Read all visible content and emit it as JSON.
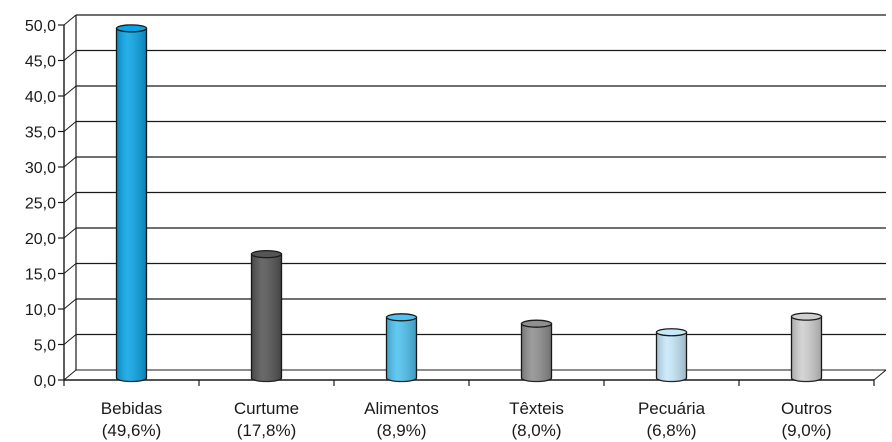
{
  "chart_data": {
    "type": "bar",
    "categories": [
      {
        "name": "Bebidas",
        "share": "(49,6%)"
      },
      {
        "name": "Curtume",
        "share": "(17,8%)"
      },
      {
        "name": "Alimentos",
        "share": "(8,9%)"
      },
      {
        "name": "Têxteis",
        "share": "(8,0%)"
      },
      {
        "name": "Pecuária",
        "share": "(6,8%)"
      },
      {
        "name": "Outros",
        "share": "(9,0%)"
      }
    ],
    "values": [
      49.6,
      17.8,
      8.9,
      8.0,
      6.8,
      9.0
    ],
    "colors": [
      "#0aa4e6",
      "#555555",
      "#4ec2f0",
      "#8f8f8f",
      "#c6e9fa",
      "#cfcfcf"
    ],
    "ylim": [
      0,
      50
    ],
    "yticks": [
      "0,0",
      "5,0",
      "10,0",
      "15,0",
      "20,0",
      "25,0",
      "30,0",
      "35,0",
      "40,0",
      "45,0",
      "50,0"
    ],
    "grid": true
  }
}
